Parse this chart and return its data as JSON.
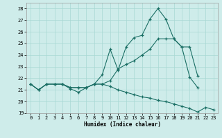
{
  "xlabel": "Humidex (Indice chaleur)",
  "bg_color": "#ceecea",
  "grid_color": "#a8d8d4",
  "line_color": "#1a6e64",
  "x_min": -0.5,
  "x_max": 23.5,
  "y_min": 19,
  "y_max": 28.5,
  "line1_x": [
    0,
    1,
    2,
    3,
    4,
    5,
    6,
    7,
    8,
    9,
    10,
    11,
    12,
    13,
    14,
    15,
    16,
    17,
    18,
    19,
    20,
    21
  ],
  "line1_y": [
    21.5,
    21.0,
    21.5,
    21.5,
    21.5,
    21.1,
    20.8,
    21.2,
    21.5,
    22.3,
    24.5,
    22.7,
    24.7,
    25.5,
    25.7,
    27.1,
    28.0,
    27.1,
    25.4,
    24.7,
    22.1,
    21.2
  ],
  "line2_x": [
    0,
    1,
    2,
    3,
    4,
    5,
    6,
    7,
    8,
    9,
    10,
    11,
    12,
    13,
    14,
    15,
    16,
    17,
    18,
    19,
    20,
    21
  ],
  "line2_y": [
    21.5,
    21.0,
    21.5,
    21.5,
    21.5,
    21.2,
    21.2,
    21.2,
    21.5,
    21.5,
    21.8,
    22.8,
    23.2,
    23.5,
    24.0,
    24.5,
    25.4,
    25.4,
    25.4,
    24.7,
    24.7,
    22.2
  ],
  "line3_x": [
    0,
    1,
    2,
    3,
    4,
    5,
    6,
    7,
    8,
    9,
    10,
    11,
    12,
    13,
    14,
    15,
    16,
    17,
    18,
    19,
    20,
    21,
    22,
    23
  ],
  "line3_y": [
    21.5,
    21.0,
    21.5,
    21.5,
    21.5,
    21.2,
    21.2,
    21.2,
    21.5,
    21.5,
    21.3,
    21.0,
    20.8,
    20.6,
    20.4,
    20.3,
    20.1,
    20.0,
    19.8,
    19.6,
    19.4,
    19.1,
    19.5,
    19.3
  ]
}
